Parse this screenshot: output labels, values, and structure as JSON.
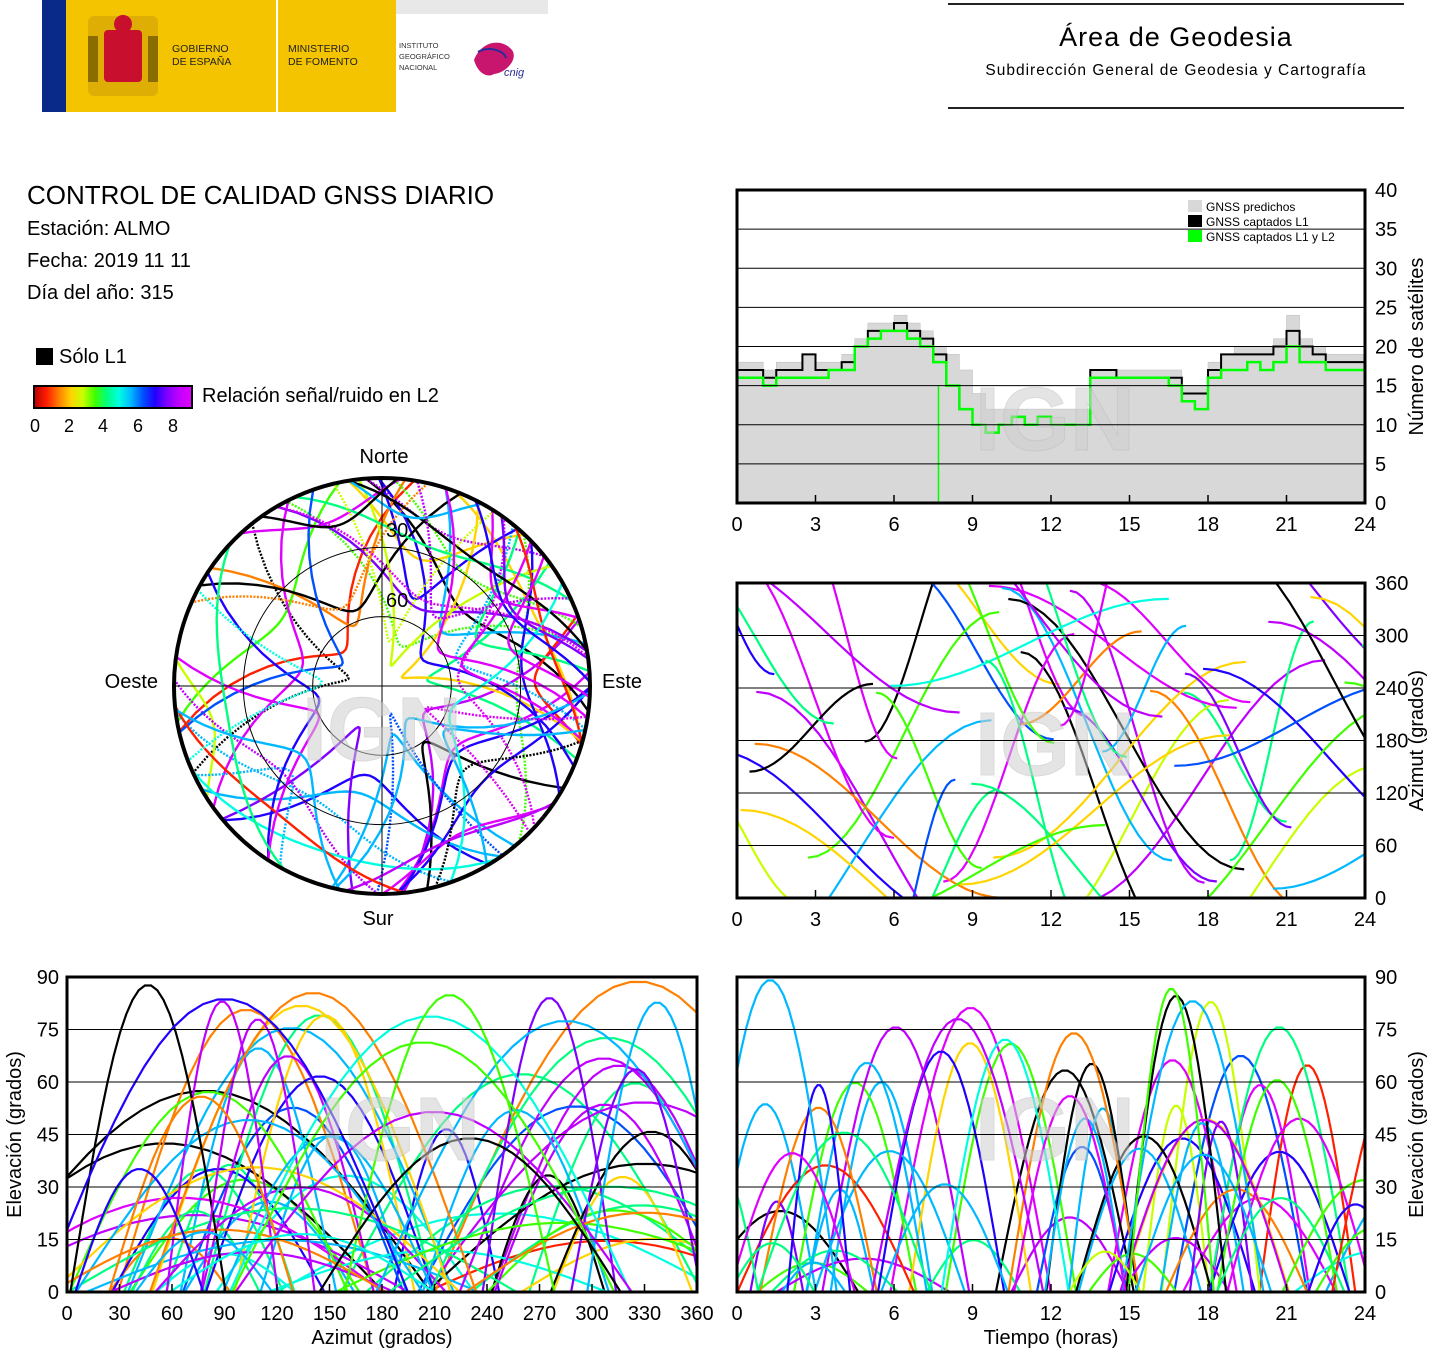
{
  "header": {
    "gov_line1": "GOBIERNO",
    "gov_line2": "DE ESPAÑA",
    "ministry_line1": "MINISTERIO",
    "ministry_line2": "DE FOMENTO",
    "ign_line1": "INSTITUTO",
    "ign_line2": "GEOGRÁFICO",
    "ign_line3": "NACIONAL",
    "cnig": "cnig",
    "area_title": "Área de Geodesia",
    "area_subtitle": "Subdirección General de Geodesia y Cartografía"
  },
  "info": {
    "title": "CONTROL DE CALIDAD GNSS DIARIO",
    "station": "Estación: ALMO",
    "date": "Fecha: 2019 11 11",
    "doy": "Día del año: 315"
  },
  "legend": {
    "solo_l1": "Sólo L1",
    "snr_label": "Relación señal/ruido en L2",
    "snr_ticks": [
      "0",
      "2",
      "4",
      "6",
      "8"
    ]
  },
  "colors": {
    "predicted": "#d8d8d8",
    "l1": "#000000",
    "l1l2": "#00ff00"
  },
  "watermark": "IGN",
  "chart_data": [
    {
      "id": "sat_count",
      "type": "area",
      "ylabel": "Número de satélites",
      "xlim": [
        0,
        24
      ],
      "ylim": [
        0,
        40
      ],
      "x_ticks": [
        "0",
        "3",
        "6",
        "9",
        "12",
        "15",
        "18",
        "21",
        "24"
      ],
      "y_ticks": [
        "0",
        "5",
        "10",
        "15",
        "20",
        "25",
        "30",
        "35",
        "40"
      ],
      "legend_position": "top-right",
      "series": [
        {
          "name": "GNSS predichos",
          "x": [
            0,
            0.5,
            1,
            1.5,
            2,
            2.5,
            3,
            3.5,
            4,
            4.5,
            5,
            5.5,
            6,
            6.5,
            7,
            7.5,
            8,
            8.5,
            9,
            9.5,
            10,
            10.5,
            11,
            11.5,
            12,
            12.5,
            13,
            13.5,
            14,
            14.5,
            15,
            15.5,
            16,
            16.5,
            17,
            17.5,
            18,
            18.5,
            19,
            19.5,
            20,
            20.5,
            21,
            21.5,
            22,
            22.5,
            23,
            23.5,
            24
          ],
          "values": [
            18,
            18,
            17,
            18,
            18,
            19,
            18,
            18,
            19,
            21,
            23,
            23,
            24,
            23,
            22,
            20,
            19,
            17,
            14,
            12,
            12,
            12,
            12,
            12,
            12,
            12,
            12,
            17,
            17,
            17,
            17,
            17,
            17,
            17,
            15,
            15,
            18,
            19,
            20,
            20,
            20,
            21,
            24,
            21,
            20,
            19,
            19,
            19,
            19
          ]
        },
        {
          "name": "GNSS captados L1",
          "x": [
            0,
            0.5,
            1,
            1.5,
            2,
            2.5,
            3,
            3.5,
            4,
            4.5,
            5,
            5.5,
            6,
            6.5,
            7,
            7.5,
            8,
            8.5,
            9,
            9.5,
            10,
            10.5,
            11,
            11.5,
            12,
            12.5,
            13,
            13.5,
            14,
            14.5,
            15,
            15.5,
            16,
            16.5,
            17,
            17.5,
            18,
            18.5,
            19,
            19.5,
            20,
            20.5,
            21,
            21.5,
            22,
            22.5,
            23,
            23.5,
            24
          ],
          "values": [
            17,
            17,
            16,
            17,
            17,
            19,
            17,
            17,
            18,
            20,
            22,
            22,
            23,
            22,
            21,
            19,
            15,
            12,
            10,
            9,
            10,
            11,
            10,
            11,
            10,
            10,
            10,
            17,
            17,
            16,
            16,
            16,
            16,
            16,
            14,
            14,
            17,
            19,
            19,
            19,
            19,
            20,
            22,
            20,
            19,
            18,
            18,
            18,
            18
          ]
        },
        {
          "name": "GNSS captados L1 y L2",
          "x": [
            0,
            0.5,
            1,
            1.5,
            2,
            2.5,
            3,
            3.5,
            4,
            4.5,
            5,
            5.5,
            6,
            6.5,
            7,
            7.5,
            8,
            8.5,
            9,
            9.5,
            10,
            10.5,
            11,
            11.5,
            12,
            12.5,
            13,
            13.5,
            14,
            14.5,
            15,
            15.5,
            16,
            16.5,
            17,
            17.5,
            18,
            18.5,
            19,
            19.5,
            20,
            20.5,
            21,
            21.5,
            22,
            22.5,
            23,
            23.5,
            24
          ],
          "values": [
            16,
            16,
            15,
            16,
            16,
            16,
            16,
            17,
            17,
            20,
            21,
            22,
            22,
            21,
            20,
            18,
            15,
            12,
            10,
            9,
            10,
            11,
            10,
            11,
            10,
            10,
            10,
            16,
            16,
            16,
            16,
            16,
            16,
            15,
            13,
            12,
            16,
            17,
            17,
            18,
            17,
            18,
            20,
            18,
            18,
            17,
            17,
            17,
            16
          ]
        }
      ]
    },
    {
      "id": "sky_plot",
      "type": "scatter",
      "north": "Norte",
      "south": "Sur",
      "east": "Este",
      "west": "Oeste",
      "rings": [
        "30",
        "60"
      ]
    },
    {
      "id": "azimuth_time",
      "type": "scatter",
      "ylabel": "Azimut (grados)",
      "xlim": [
        0,
        24
      ],
      "ylim": [
        0,
        360
      ],
      "x_ticks": [
        "0",
        "3",
        "6",
        "9",
        "12",
        "15",
        "18",
        "21",
        "24"
      ],
      "y_ticks": [
        "0",
        "60",
        "120",
        "180",
        "240",
        "300",
        "360"
      ]
    },
    {
      "id": "elevation_azimuth",
      "type": "scatter",
      "xlabel": "Azimut (grados)",
      "ylabel": "Elevación (grados)",
      "xlim": [
        0,
        360
      ],
      "ylim": [
        0,
        90
      ],
      "x_ticks": [
        "0",
        "30",
        "60",
        "90",
        "120",
        "150",
        "180",
        "210",
        "240",
        "270",
        "300",
        "330",
        "360"
      ],
      "y_ticks": [
        "0",
        "15",
        "30",
        "45",
        "60",
        "75",
        "90"
      ]
    },
    {
      "id": "elevation_time",
      "type": "scatter",
      "xlabel": "Tiempo (horas)",
      "ylabel": "Elevación (grados)",
      "xlim": [
        0,
        24
      ],
      "ylim": [
        0,
        90
      ],
      "x_ticks": [
        "0",
        "3",
        "6",
        "9",
        "12",
        "15",
        "18",
        "21",
        "24"
      ],
      "y_ticks": [
        "0",
        "15",
        "30",
        "45",
        "60",
        "75",
        "90"
      ]
    }
  ]
}
